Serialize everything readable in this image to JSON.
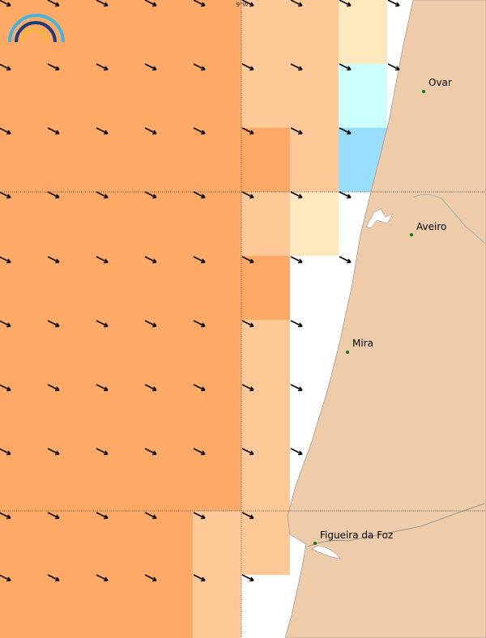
{
  "map": {
    "graticule_label": "9°W",
    "places": [
      {
        "name": "Ovar"
      },
      {
        "name": "Aveiro"
      },
      {
        "name": "Mira"
      },
      {
        "name": "Figueira da Foz"
      }
    ]
  }
}
